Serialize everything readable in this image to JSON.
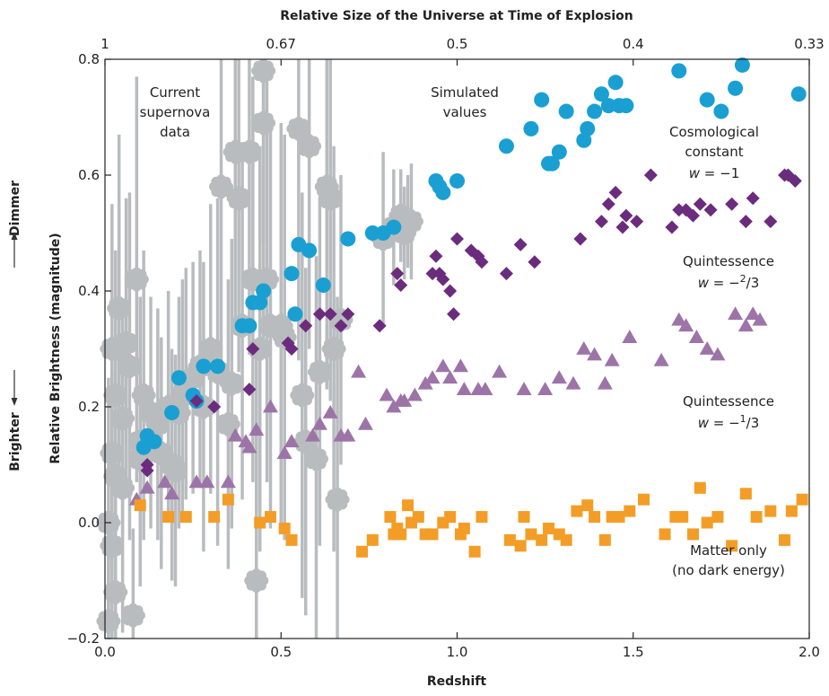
{
  "chart_data": {
    "type": "scatter",
    "title": "",
    "xlabel": "Redshift",
    "ylabel": "Relative Brightness (magnitude)",
    "top_axis_label": "Relative Size of the Universe at Time of Explosion",
    "top_ticks": [
      "1",
      "0.67",
      "0.5",
      "0.4",
      "0.33"
    ],
    "side_labels": {
      "dimmer": "Dimmer",
      "brighter": "Brighter"
    },
    "xlim": [
      0.0,
      2.0
    ],
    "ylim": [
      -0.2,
      0.8
    ],
    "x_ticks": [
      "0.0",
      "0.5",
      "1.0",
      "1.5",
      "2.0"
    ],
    "y_ticks": [
      "−0.2",
      "0.0",
      "0.2",
      "0.4",
      "0.6",
      "0.8"
    ],
    "grid": false,
    "colors": {
      "observed": "#b8bcbf",
      "cosmological_constant": "#1a9fd2",
      "quintessence_2_3": "#6b2c7e",
      "quintessence_1_3": "#9d74a8",
      "matter_only": "#f39d26"
    },
    "annotations": {
      "observed": [
        "Current",
        "supernova",
        "data"
      ],
      "simulated": [
        "Simulated",
        "values"
      ],
      "cosmological_constant": {
        "line1": "Cosmological",
        "line2": "constant",
        "w": "w",
        "eq": "= −1"
      },
      "quintessence_2_3": {
        "line1": "Quintessence",
        "w": "w",
        "eq": "= −",
        "num": "2",
        "den": "/3"
      },
      "quintessence_1_3": {
        "line1": "Quintessence",
        "w": "w",
        "eq": "= −",
        "num": "1",
        "den": "/3"
      },
      "matter_only": [
        "Matter only",
        "(no dark energy)"
      ]
    },
    "series": [
      {
        "marker": "circle",
        "color_key": "cosmological_constant",
        "x": [
          0.11,
          0.12,
          0.14,
          0.19,
          0.21,
          0.25,
          0.26,
          0.28,
          0.32,
          0.39,
          0.41,
          0.42,
          0.44,
          0.45,
          0.53,
          0.54,
          0.55,
          0.58,
          0.62,
          0.69,
          0.76,
          0.79,
          0.82,
          0.94,
          0.95,
          0.96,
          1.0,
          1.14,
          1.21,
          1.24,
          1.26,
          1.27,
          1.29,
          1.31,
          1.36,
          1.37,
          1.39,
          1.41,
          1.43,
          1.45,
          1.46,
          1.48,
          1.63,
          1.71,
          1.75,
          1.79,
          1.81,
          1.97
        ],
        "y": [
          0.13,
          0.15,
          0.14,
          0.19,
          0.25,
          0.22,
          0.21,
          0.27,
          0.27,
          0.34,
          0.34,
          0.38,
          0.38,
          0.4,
          0.43,
          0.36,
          0.48,
          0.47,
          0.41,
          0.49,
          0.5,
          0.5,
          0.51,
          0.59,
          0.58,
          0.57,
          0.59,
          0.65,
          0.68,
          0.73,
          0.62,
          0.62,
          0.64,
          0.71,
          0.66,
          0.68,
          0.71,
          0.74,
          0.72,
          0.76,
          0.72,
          0.72,
          0.78,
          0.73,
          0.71,
          0.75,
          0.79,
          0.74
        ]
      },
      {
        "marker": "diamond",
        "color_key": "quintessence_2_3",
        "x": [
          0.12,
          0.12,
          0.26,
          0.31,
          0.41,
          0.42,
          0.52,
          0.53,
          0.57,
          0.61,
          0.64,
          0.67,
          0.69,
          0.78,
          0.83,
          0.84,
          0.93,
          0.94,
          0.95,
          0.96,
          0.98,
          0.99,
          1.0,
          1.04,
          1.06,
          1.07,
          1.14,
          1.18,
          1.22,
          1.35,
          1.41,
          1.43,
          1.45,
          1.47,
          1.48,
          1.51,
          1.55,
          1.61,
          1.63,
          1.65,
          1.67,
          1.69,
          1.72,
          1.78,
          1.82,
          1.84,
          1.89,
          1.93,
          1.94,
          1.96
        ],
        "y": [
          0.09,
          0.1,
          0.21,
          0.2,
          0.23,
          0.3,
          0.31,
          0.3,
          0.34,
          0.36,
          0.36,
          0.34,
          0.36,
          0.34,
          0.43,
          0.41,
          0.43,
          0.46,
          0.43,
          0.42,
          0.4,
          0.36,
          0.49,
          0.47,
          0.46,
          0.45,
          0.43,
          0.48,
          0.45,
          0.49,
          0.52,
          0.55,
          0.57,
          0.51,
          0.53,
          0.52,
          0.6,
          0.51,
          0.54,
          0.54,
          0.53,
          0.55,
          0.54,
          0.55,
          0.52,
          0.56,
          0.52,
          0.6,
          0.6,
          0.59
        ]
      },
      {
        "marker": "triangle",
        "color_key": "quintessence_1_3",
        "x": [
          0.09,
          0.12,
          0.17,
          0.19,
          0.26,
          0.29,
          0.35,
          0.37,
          0.4,
          0.41,
          0.43,
          0.47,
          0.51,
          0.53,
          0.59,
          0.61,
          0.64,
          0.67,
          0.69,
          0.72,
          0.74,
          0.8,
          0.82,
          0.84,
          0.85,
          0.88,
          0.91,
          0.93,
          0.96,
          0.98,
          1.01,
          1.02,
          1.06,
          1.08,
          1.12,
          1.19,
          1.25,
          1.29,
          1.33,
          1.36,
          1.39,
          1.42,
          1.44,
          1.49,
          1.58,
          1.63,
          1.65,
          1.68,
          1.71,
          1.74,
          1.79,
          1.82,
          1.84,
          1.86
        ],
        "y": [
          0.04,
          0.06,
          0.07,
          0.05,
          0.07,
          0.07,
          0.07,
          0.15,
          0.14,
          0.13,
          0.16,
          0.2,
          0.12,
          0.14,
          0.15,
          0.17,
          0.19,
          0.15,
          0.15,
          0.26,
          0.17,
          0.22,
          0.2,
          0.21,
          0.21,
          0.22,
          0.24,
          0.25,
          0.27,
          0.25,
          0.27,
          0.23,
          0.23,
          0.23,
          0.26,
          0.23,
          0.23,
          0.25,
          0.24,
          0.3,
          0.29,
          0.24,
          0.28,
          0.32,
          0.28,
          0.35,
          0.34,
          0.32,
          0.3,
          0.29,
          0.36,
          0.34,
          0.36,
          0.35
        ]
      },
      {
        "marker": "square",
        "color_key": "matter_only",
        "x": [
          0.1,
          0.18,
          0.23,
          0.31,
          0.35,
          0.44,
          0.47,
          0.51,
          0.53,
          0.73,
          0.76,
          0.81,
          0.82,
          0.83,
          0.84,
          0.86,
          0.87,
          0.89,
          0.91,
          0.93,
          0.96,
          0.98,
          1.01,
          1.02,
          1.05,
          1.07,
          1.15,
          1.18,
          1.19,
          1.21,
          1.24,
          1.26,
          1.29,
          1.31,
          1.34,
          1.37,
          1.39,
          1.42,
          1.44,
          1.46,
          1.49,
          1.53,
          1.59,
          1.62,
          1.64,
          1.67,
          1.69,
          1.71,
          1.74,
          1.78,
          1.82,
          1.85,
          1.89,
          1.93,
          1.95,
          1.98
        ],
        "y": [
          0.03,
          0.01,
          0.01,
          0.01,
          0.04,
          0.0,
          0.01,
          -0.01,
          -0.03,
          -0.05,
          -0.03,
          0.01,
          -0.02,
          -0.01,
          -0.02,
          0.03,
          0.0,
          0.01,
          -0.02,
          -0.02,
          0.0,
          0.01,
          -0.02,
          -0.01,
          -0.05,
          0.01,
          -0.03,
          -0.04,
          0.01,
          -0.02,
          -0.03,
          -0.01,
          -0.02,
          -0.03,
          0.02,
          0.03,
          0.01,
          -0.03,
          0.01,
          0.01,
          0.02,
          0.04,
          -0.02,
          0.01,
          0.01,
          -0.02,
          0.06,
          0.0,
          0.01,
          -0.04,
          0.05,
          0.01,
          0.02,
          -0.03,
          0.02,
          0.04
        ]
      },
      {
        "marker": "gear",
        "color_key": "observed",
        "x": [
          0.01,
          0.01,
          0.02,
          0.02,
          0.02,
          0.03,
          0.03,
          0.03,
          0.04,
          0.04,
          0.05,
          0.05,
          0.06,
          0.07,
          0.08,
          0.09,
          0.1,
          0.1,
          0.11,
          0.13,
          0.15,
          0.16,
          0.18,
          0.19,
          0.2,
          0.21,
          0.22,
          0.23,
          0.25,
          0.27,
          0.28,
          0.3,
          0.32,
          0.33,
          0.35,
          0.36,
          0.37,
          0.38,
          0.39,
          0.41,
          0.42,
          0.43,
          0.44,
          0.45,
          0.45,
          0.46,
          0.47,
          0.5,
          0.51,
          0.55,
          0.56,
          0.57,
          0.58,
          0.6,
          0.61,
          0.63,
          0.64,
          0.65,
          0.66,
          0.67,
          0.79,
          0.82,
          0.84,
          0.85,
          0.86,
          0.87
        ],
        "y": [
          0.0,
          -0.17,
          0.12,
          -0.04,
          0.3,
          0.08,
          0.22,
          -0.12,
          0.3,
          0.37,
          0.18,
          0.06,
          0.31,
          0.27,
          -0.16,
          0.42,
          0.14,
          0.11,
          0.22,
          0.19,
          0.17,
          0.12,
          0.2,
          0.1,
          0.09,
          0.19,
          0.22,
          0.24,
          0.25,
          0.27,
          0.2,
          0.3,
          0.26,
          0.58,
          0.17,
          0.24,
          0.64,
          0.56,
          0.34,
          0.64,
          0.42,
          -0.1,
          0.3,
          0.69,
          0.78,
          0.42,
          0.34,
          0.34,
          0.32,
          0.68,
          0.22,
          0.14,
          0.65,
          0.11,
          0.26,
          0.58,
          0.56,
          0.3,
          0.04,
          0.35,
          0.49,
          0.51,
          0.53,
          0.5,
          0.52,
          0.52
        ],
        "err": [
          0.25,
          0.15,
          0.2,
          0.3,
          0.25,
          0.2,
          0.25,
          0.15,
          0.25,
          0.3,
          0.2,
          0.25,
          0.25,
          0.3,
          0.15,
          0.35,
          0.25,
          0.2,
          0.25,
          0.2,
          0.2,
          0.2,
          0.2,
          0.2,
          0.2,
          0.2,
          0.2,
          0.2,
          0.2,
          0.2,
          0.25,
          0.25,
          0.3,
          0.3,
          0.25,
          0.25,
          0.3,
          0.3,
          0.3,
          0.35,
          0.35,
          0.4,
          0.35,
          0.4,
          0.3,
          0.35,
          0.35,
          0.35,
          0.35,
          0.4,
          0.35,
          0.3,
          0.35,
          0.35,
          0.3,
          0.35,
          0.35,
          0.35,
          0.35,
          0.25,
          0.15,
          0.1,
          0.08,
          0.08,
          0.08,
          0.1
        ]
      }
    ]
  }
}
